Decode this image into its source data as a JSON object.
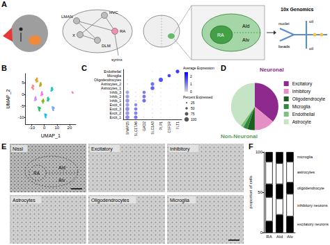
{
  "panel_labels": [
    "A",
    "B",
    "C",
    "D",
    "E",
    "F"
  ],
  "diagram": {
    "brain_labels": [
      "HVC",
      "LMAN",
      "RA",
      "X",
      "DLM",
      "syrinx"
    ],
    "section_labels": [
      "RA",
      "AId",
      "AIv"
    ],
    "method": "10x Genomics",
    "channel_labels": [
      "nuclei",
      "beads",
      "oil",
      "oil"
    ]
  },
  "micrographs": {
    "titles": [
      "Nissl",
      "Excitatory",
      "Inhibitory",
      "Astrocytes",
      "Oligodendrocytes",
      "Microglia"
    ],
    "nissl_labels": [
      "RA",
      "AId",
      "AIv"
    ]
  },
  "chart_data": [
    {
      "type": "scatter",
      "x_label": "UMAP_1",
      "y_label": "UMAP_2",
      "xlim": [
        -15,
        25
      ],
      "xticks": [
        -10,
        0,
        10,
        20
      ],
      "ylim": [
        -13,
        9
      ],
      "yticks": [
        -10,
        -5,
        0,
        5
      ],
      "grid": false,
      "series": [
        {
          "color": "#F8766D",
          "x": [
            -9.5,
            -9,
            -8.6,
            -9.2,
            -8.8,
            -9.8
          ],
          "values": [
            3.2,
            2.6,
            3.5,
            3.9,
            2.2,
            2.9
          ]
        },
        {
          "color": "#DE8C00",
          "x": [
            -6.5,
            -6,
            -5.4,
            -6.2,
            -5.8,
            -6.8
          ],
          "values": [
            6.1,
            6.6,
            5.8,
            5.4,
            7.0,
            6.3
          ]
        },
        {
          "color": "#B79F00",
          "x": [
            -3.4,
            -2.8,
            -3.1,
            -2.5,
            -3.6,
            -2.9
          ],
          "values": [
            4.2,
            3.8,
            4.7,
            4.3,
            3.6,
            5.0
          ]
        },
        {
          "color": "#7CAE00",
          "x": [
            -1.5,
            -0.8,
            -1.1,
            -0.5,
            -1.7,
            -0.9
          ],
          "values": [
            -3.2,
            -2.6,
            -3.7,
            -3.0,
            -2.8,
            -2.2
          ]
        },
        {
          "color": "#00BA38",
          "x": [
            -4.4,
            -3.7,
            -4.1,
            -3.4,
            -4.8,
            -3.9
          ],
          "values": [
            -6.2,
            -5.8,
            -6.7,
            -6.1,
            -5.6,
            -7.1
          ]
        },
        {
          "color": "#00C08B",
          "x": [
            2.6,
            3.2,
            2.9,
            3.6,
            2.4,
            3.1
          ],
          "values": [
            -1.8,
            -2.3,
            -1.4,
            -2.0,
            -2.6,
            -2.8
          ]
        },
        {
          "color": "#00BFC4",
          "x": [
            5.6,
            6.2,
            5.9,
            6.6,
            5.4,
            6.1
          ],
          "values": [
            2.2,
            1.8,
            2.7,
            2.3,
            1.5,
            2.9
          ]
        },
        {
          "color": "#00B4F0",
          "x": [
            0.6,
            1.2,
            0.9,
            1.6,
            0.4,
            1.1
          ],
          "values": [
            -9.2,
            -8.7,
            -9.6,
            -9.0,
            -8.6,
            -10.0
          ]
        },
        {
          "color": "#619CFF",
          "x": [
            6.6,
            7.2,
            6.9,
            7.6,
            6.4,
            7.1
          ],
          "values": [
            -6.1,
            -5.7,
            -6.6,
            -6.0,
            -5.5,
            -6.9
          ]
        },
        {
          "color": "#C77CFF",
          "x": [
            -7.4,
            -6.8,
            -7.1,
            -6.5,
            -7.7,
            -6.9
          ],
          "values": [
            -1.8,
            -2.4,
            -1.5,
            -2.1,
            -2.6,
            -1.2
          ]
        },
        {
          "color": "#F564E3",
          "x": [
            -2.3,
            -1.7,
            -2.0,
            -1.4,
            -2.6,
            -1.9
          ],
          "values": [
            0.3,
            -0.2,
            0.7,
            0.1,
            -0.4,
            1.0
          ]
        },
        {
          "color": "#FF64B0",
          "x": [
            22.1,
            22.6
          ],
          "values": [
            1.0,
            0.6
          ]
        }
      ]
    },
    {
      "type": "dot",
      "categories": [
        "SNAP25",
        "SLC17A6",
        "GAD2",
        "SLC1A3",
        "PLP1",
        "CSF1R",
        "FLT1"
      ],
      "rows": [
        "Endothelial",
        "Microglia",
        "Oligodendrocytes",
        "Astrocytes_2",
        "Astrocytes_1",
        "Inhib_3",
        "Inhib_2",
        "Inhib_1",
        "Excit_4",
        "Excit_3",
        "Excit_2",
        "Excit_1"
      ],
      "avg_expression": [
        [
          0,
          0,
          0,
          0.1,
          0.1,
          0.1,
          2.4
        ],
        [
          0,
          0,
          0,
          0,
          0.1,
          2.2,
          0.1
        ],
        [
          0.1,
          0,
          0,
          0.1,
          2.0,
          0.1,
          0
        ],
        [
          0.2,
          0,
          0,
          1.6,
          0.2,
          0.1,
          0.1
        ],
        [
          0.1,
          0,
          0,
          1.8,
          0.2,
          0.1,
          0.1
        ],
        [
          0.8,
          0.2,
          1.4,
          0.2,
          0.1,
          0,
          0
        ],
        [
          0.9,
          0.1,
          1.5,
          0.1,
          0.1,
          0,
          0
        ],
        [
          1.0,
          0.2,
          1.6,
          0.1,
          0.1,
          0,
          0
        ],
        [
          0.9,
          1.2,
          0.1,
          0.1,
          0.1,
          0,
          0
        ],
        [
          1.1,
          1.4,
          0.2,
          0.1,
          0.2,
          0,
          0
        ],
        [
          1.0,
          1.3,
          0.1,
          0.2,
          0.1,
          0,
          0
        ],
        [
          1.2,
          1.5,
          0.1,
          0.1,
          0.1,
          0,
          0
        ]
      ],
      "percent_expressed": [
        [
          5,
          2,
          2,
          10,
          10,
          5,
          80
        ],
        [
          5,
          2,
          2,
          5,
          10,
          70,
          5
        ],
        [
          15,
          3,
          3,
          10,
          95,
          5,
          3
        ],
        [
          20,
          3,
          3,
          80,
          15,
          5,
          5
        ],
        [
          15,
          3,
          3,
          85,
          15,
          5,
          5
        ],
        [
          75,
          15,
          70,
          12,
          10,
          3,
          3
        ],
        [
          80,
          15,
          75,
          10,
          10,
          3,
          3
        ],
        [
          85,
          20,
          80,
          10,
          10,
          3,
          3
        ],
        [
          80,
          65,
          10,
          10,
          8,
          3,
          3
        ],
        [
          88,
          70,
          12,
          10,
          12,
          3,
          3
        ],
        [
          85,
          75,
          8,
          15,
          10,
          3,
          3
        ],
        [
          90,
          80,
          10,
          15,
          10,
          3,
          3
        ]
      ],
      "colorbar": {
        "title": "Average Expression",
        "range": [
          0,
          2.5
        ],
        "ticks": [
          0,
          1,
          2
        ],
        "colors": [
          "#d3d3d3",
          "#0000ff"
        ]
      },
      "size_legend": {
        "title": "Percent Expressed",
        "values": [
          25,
          50,
          75,
          100
        ]
      }
    },
    {
      "type": "pie",
      "categories": [
        "Excitatory",
        "Inhibitory",
        "Oligodendrocyte",
        "Microglia",
        "Endothelial",
        "Astrocyte"
      ],
      "values": [
        36,
        14,
        5,
        3,
        2,
        40
      ],
      "colors": [
        "#8e2a8e",
        "#e58fc6",
        "#1b5e20",
        "#2e8b3e",
        "#7fbf7f",
        "#c5e3c5"
      ],
      "legend": "right",
      "annotations": [
        {
          "text": "Neuronal",
          "color": "#8e2a8e"
        },
        {
          "text": "Non-Neuronal",
          "color": "#5a9e5a"
        }
      ]
    },
    {
      "type": "bar",
      "stacked": true,
      "y_label": "proportion of cells",
      "categories": [
        "RA",
        "AId",
        "AIv"
      ],
      "ylim": [
        0,
        100
      ],
      "yticks": [
        0,
        50,
        100
      ],
      "grid": false,
      "series": [
        {
          "name": "excitatory neurons",
          "color": "#000000",
          "values": [
            14,
            22,
            20
          ]
        },
        {
          "name": "inhibitory neurons",
          "color": "#ffffff",
          "values": [
            30,
            20,
            28
          ]
        },
        {
          "name": "oligodendrocyte",
          "color": "#000000",
          "values": [
            16,
            18,
            14
          ]
        },
        {
          "name": "astrocytes",
          "color": "#ffffff",
          "values": [
            28,
            26,
            26
          ]
        },
        {
          "name": "microglia",
          "color": "#000000",
          "values": [
            12,
            14,
            12
          ]
        }
      ]
    }
  ]
}
